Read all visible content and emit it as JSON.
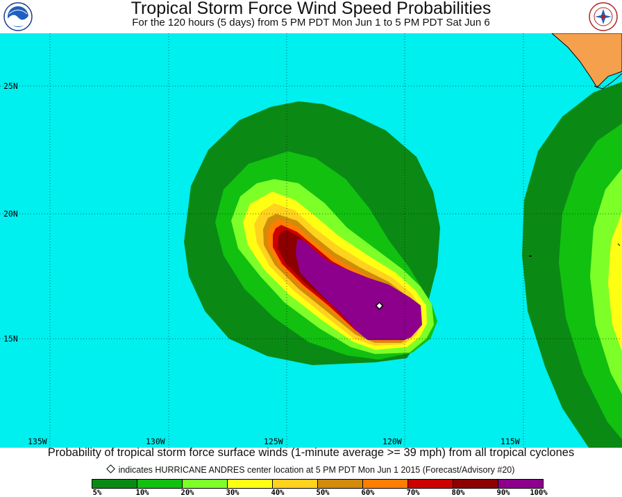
{
  "header": {
    "title": "Tropical Storm Force Wind Speed Probabilities",
    "subtitle": "For the 120 hours (5 days) from 5 PM PDT Mon Jun 1 to 5 PM PDT Sat Jun 6",
    "left_logo": "noaa-logo",
    "right_logo": "national-weather-service-logo"
  },
  "map": {
    "ocean_color": "#00efef",
    "land_color": "#f5a04c",
    "lat_labels": [
      "25N",
      "20N",
      "15N"
    ],
    "lon_labels": [
      "135W",
      "130W",
      "125W",
      "120W",
      "115W"
    ]
  },
  "footer": {
    "caption": "Probability of tropical storm force surface winds (1-minute average >= 39 mph) from all tropical cyclones",
    "center_note": "indicates HURRICANE ANDRES center location at 5 PM PDT Mon Jun 1 2015 (Forecast/Advisory #20)"
  },
  "legend": {
    "colors": [
      "#0a8a14",
      "#12c010",
      "#7dff28",
      "#ffff14",
      "#ffd21e",
      "#d28c0a",
      "#ff7d00",
      "#cd0000",
      "#8c0000",
      "#8c008c"
    ],
    "labels": [
      "5%",
      "10%",
      "20%",
      "30%",
      "40%",
      "50%",
      "60%",
      "70%",
      "80%",
      "90%",
      "100%"
    ]
  }
}
